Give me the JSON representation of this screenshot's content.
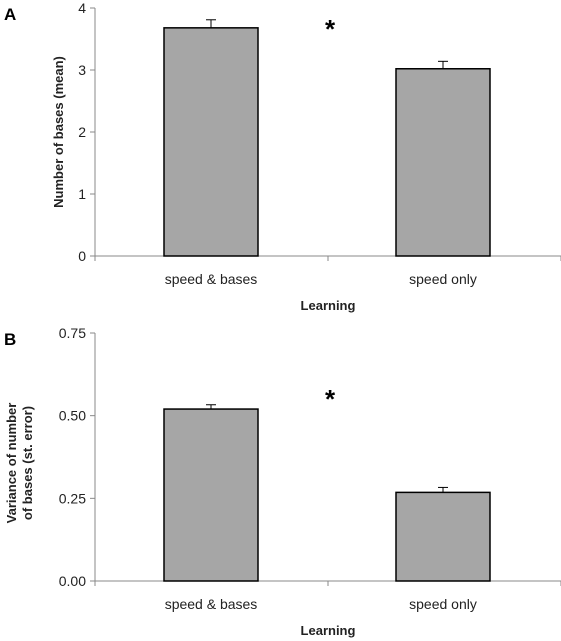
{
  "colors": {
    "bar_fill": "#a6a6a6",
    "bar_stroke": "#000000",
    "axis": "#888888"
  },
  "chart_data": [
    {
      "panel_label": "A",
      "type": "bar",
      "categories": [
        "speed & bases",
        "speed only"
      ],
      "values": [
        3.68,
        3.02
      ],
      "errors": [
        0.13,
        0.12
      ],
      "xlabel": "Learning",
      "ylabel": "Number of bases (mean)",
      "ylim": [
        0,
        4
      ],
      "yticks": [
        "0",
        "1",
        "2",
        "3",
        "4"
      ],
      "ytick_values": [
        0,
        1,
        2,
        3,
        4
      ],
      "significance_marker": "*",
      "grid": false
    },
    {
      "panel_label": "B",
      "type": "bar",
      "categories": [
        "speed & bases",
        "speed only"
      ],
      "values": [
        0.52,
        0.268
      ],
      "errors": [
        0.013,
        0.015
      ],
      "xlabel": "Learning",
      "ylabel_lines": [
        "Variance of number",
        "of bases (st. error)"
      ],
      "ylim": [
        0,
        0.75
      ],
      "yticks": [
        "0.00",
        "0.25",
        "0.50",
        "0.75"
      ],
      "ytick_values": [
        0,
        0.25,
        0.5,
        0.75
      ],
      "significance_marker": "*",
      "grid": false
    }
  ]
}
